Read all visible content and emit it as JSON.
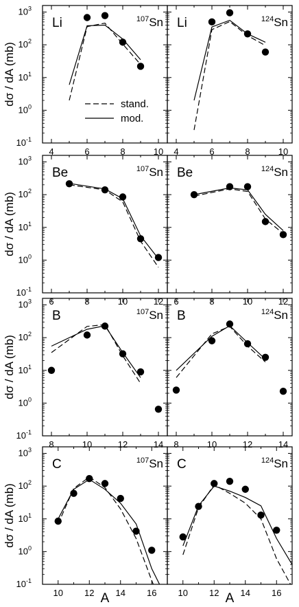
{
  "figure": {
    "ylabel": "dσ / dA (mb)",
    "xlabel": "A",
    "legend": {
      "dashed_label": "stand.",
      "solid_label": "mod."
    },
    "colors": {
      "ink": "#000000",
      "background": "#ffffff"
    }
  },
  "chart_data": [
    {
      "type": "line",
      "row": 0,
      "col": 0,
      "element": "Li",
      "isotope_mass": "107",
      "isotope_symbol": "Sn",
      "xlim": [
        3.5,
        10.5
      ],
      "ylim_log10": [
        -1,
        3.2
      ],
      "xticks": [
        4,
        6,
        8,
        10
      ],
      "yscale": "log",
      "points": [
        [
          6,
          680
        ],
        [
          7,
          780
        ],
        [
          8,
          120
        ],
        [
          9,
          22
        ]
      ],
      "series": [
        {
          "name": "mod.",
          "style": "solid",
          "x": [
            5,
            6,
            7,
            8,
            9
          ],
          "y": [
            6,
            380,
            400,
            150,
            35
          ]
        },
        {
          "name": "stand.",
          "style": "dashed",
          "x": [
            5,
            6,
            7,
            8,
            9
          ],
          "y": [
            2,
            360,
            460,
            105,
            25
          ]
        }
      ]
    },
    {
      "type": "line",
      "row": 0,
      "col": 1,
      "element": "Li",
      "isotope_mass": "124",
      "isotope_symbol": "Sn",
      "xlim": [
        3.5,
        10.5
      ],
      "ylim_log10": [
        -1,
        3.2
      ],
      "xticks": [
        4,
        6,
        8,
        10
      ],
      "yscale": "log",
      "points": [
        [
          6,
          500
        ],
        [
          7,
          950
        ],
        [
          8,
          215
        ],
        [
          9,
          60
        ]
      ],
      "series": [
        {
          "name": "mod.",
          "style": "solid",
          "x": [
            5,
            6,
            7,
            8,
            9
          ],
          "y": [
            2,
            350,
            560,
            215,
            120
          ]
        },
        {
          "name": "stand.",
          "style": "dashed",
          "x": [
            5,
            6,
            7,
            8,
            9
          ],
          "y": [
            0.25,
            290,
            510,
            190,
            95
          ]
        }
      ]
    },
    {
      "type": "line",
      "row": 1,
      "col": 0,
      "element": "Be",
      "isotope_mass": "107",
      "isotope_symbol": "Sn",
      "xlim": [
        5.5,
        12.5
      ],
      "ylim_log10": [
        -1,
        3.2
      ],
      "xticks": [
        6,
        8,
        10,
        12
      ],
      "yscale": "log",
      "points": [
        [
          7,
          215
        ],
        [
          9,
          140
        ],
        [
          10,
          85
        ],
        [
          11,
          4.5
        ],
        [
          12,
          1.2
        ]
      ],
      "series": [
        {
          "name": "mod.",
          "style": "solid",
          "x": [
            7,
            9,
            10,
            11,
            12
          ],
          "y": [
            220,
            150,
            75,
            5.5,
            1.1
          ]
        },
        {
          "name": "stand.",
          "style": "dashed",
          "x": [
            7,
            9,
            10,
            11,
            12
          ],
          "y": [
            200,
            140,
            60,
            3.8,
            0.6
          ]
        }
      ]
    },
    {
      "type": "line",
      "row": 1,
      "col": 1,
      "element": "Be",
      "isotope_mass": "124",
      "isotope_symbol": "Sn",
      "xlim": [
        5.5,
        12.5
      ],
      "ylim_log10": [
        -1,
        3.2
      ],
      "xticks": [
        6,
        8,
        10,
        12
      ],
      "yscale": "log",
      "points": [
        [
          7,
          100
        ],
        [
          9,
          175
        ],
        [
          10,
          175
        ],
        [
          11,
          15
        ],
        [
          12,
          6
        ]
      ],
      "series": [
        {
          "name": "mod.",
          "style": "solid",
          "x": [
            7,
            9,
            10,
            11,
            12
          ],
          "y": [
            100,
            160,
            140,
            25,
            8
          ]
        },
        {
          "name": "stand.",
          "style": "dashed",
          "x": [
            7,
            9,
            10,
            11,
            12
          ],
          "y": [
            90,
            150,
            125,
            18,
            6.5
          ]
        }
      ]
    },
    {
      "type": "line",
      "row": 2,
      "col": 0,
      "element": "B",
      "isotope_mass": "107",
      "isotope_symbol": "Sn",
      "xlim": [
        7.5,
        14.5
      ],
      "ylim_log10": [
        -1,
        3.2
      ],
      "xticks": [
        8,
        10,
        12,
        14
      ],
      "yscale": "log",
      "points": [
        [
          8,
          10
        ],
        [
          10,
          120
        ],
        [
          11,
          225
        ],
        [
          12,
          32
        ],
        [
          13,
          9
        ],
        [
          14,
          0.65
        ]
      ],
      "series": [
        {
          "name": "mod.",
          "style": "solid",
          "x": [
            8,
            10,
            11,
            12,
            13
          ],
          "y": [
            55,
            180,
            230,
            35,
            6
          ]
        },
        {
          "name": "stand.",
          "style": "dashed",
          "x": [
            8,
            10,
            11,
            12,
            13
          ],
          "y": [
            35,
            220,
            250,
            28,
            4
          ]
        }
      ]
    },
    {
      "type": "line",
      "row": 2,
      "col": 1,
      "element": "B",
      "isotope_mass": "124",
      "isotope_symbol": "Sn",
      "xlim": [
        7.5,
        14.5
      ],
      "ylim_log10": [
        -1,
        3.2
      ],
      "xticks": [
        8,
        10,
        12,
        14
      ],
      "yscale": "log",
      "points": [
        [
          8,
          2.5
        ],
        [
          10,
          80
        ],
        [
          11,
          260
        ],
        [
          12,
          65
        ],
        [
          13,
          25
        ],
        [
          14,
          2.3
        ]
      ],
      "series": [
        {
          "name": "mod.",
          "style": "solid",
          "x": [
            8,
            10,
            11,
            12,
            13
          ],
          "y": [
            10,
            110,
            230,
            70,
            22
          ]
        },
        {
          "name": "stand.",
          "style": "dashed",
          "x": [
            8,
            10,
            11,
            12,
            13
          ],
          "y": [
            6,
            130,
            220,
            55,
            18
          ]
        }
      ]
    },
    {
      "type": "line",
      "row": 3,
      "col": 0,
      "element": "C",
      "isotope_mass": "107",
      "isotope_symbol": "Sn",
      "xlim": [
        9,
        17
      ],
      "ylim_log10": [
        -1,
        3.2
      ],
      "xticks": [
        10,
        12,
        14,
        16
      ],
      "yscale": "log",
      "points": [
        [
          10,
          8.5
        ],
        [
          11,
          60
        ],
        [
          12,
          170
        ],
        [
          13,
          120
        ],
        [
          14,
          42
        ],
        [
          15,
          4.2
        ],
        [
          16,
          1.1
        ]
      ],
      "series": [
        {
          "name": "mod.",
          "style": "solid",
          "x": [
            10,
            11,
            12,
            13,
            14,
            15,
            16,
            16.5
          ],
          "y": [
            10,
            80,
            160,
            80,
            30,
            7,
            0.3,
            0.1
          ]
        },
        {
          "name": "stand.",
          "style": "dashed",
          "x": [
            10,
            11,
            12,
            13,
            14,
            15,
            16,
            16.1
          ],
          "y": [
            7,
            85,
            190,
            90,
            20,
            2.5,
            0.13,
            0.1
          ]
        }
      ]
    },
    {
      "type": "line",
      "row": 3,
      "col": 1,
      "element": "C",
      "isotope_mass": "124",
      "isotope_symbol": "Sn",
      "xlim": [
        9,
        17
      ],
      "ylim_log10": [
        -1,
        3.2
      ],
      "xticks": [
        10,
        12,
        14,
        16
      ],
      "yscale": "log",
      "points": [
        [
          10,
          2.8
        ],
        [
          11,
          24
        ],
        [
          12,
          120
        ],
        [
          13,
          140
        ],
        [
          14,
          80
        ],
        [
          15,
          13
        ],
        [
          16,
          4.5
        ]
      ],
      "series": [
        {
          "name": "mod.",
          "style": "solid",
          "x": [
            10,
            11,
            12,
            13,
            14,
            15,
            16,
            17
          ],
          "y": [
            1.5,
            25,
            100,
            70,
            45,
            25,
            2.5,
            0.4
          ]
        },
        {
          "name": "stand.",
          "style": "dashed",
          "x": [
            10,
            11,
            12,
            13,
            14,
            15,
            16,
            16.9
          ],
          "y": [
            0.8,
            22,
            110,
            60,
            30,
            10,
            0.6,
            0.1
          ]
        }
      ]
    }
  ]
}
